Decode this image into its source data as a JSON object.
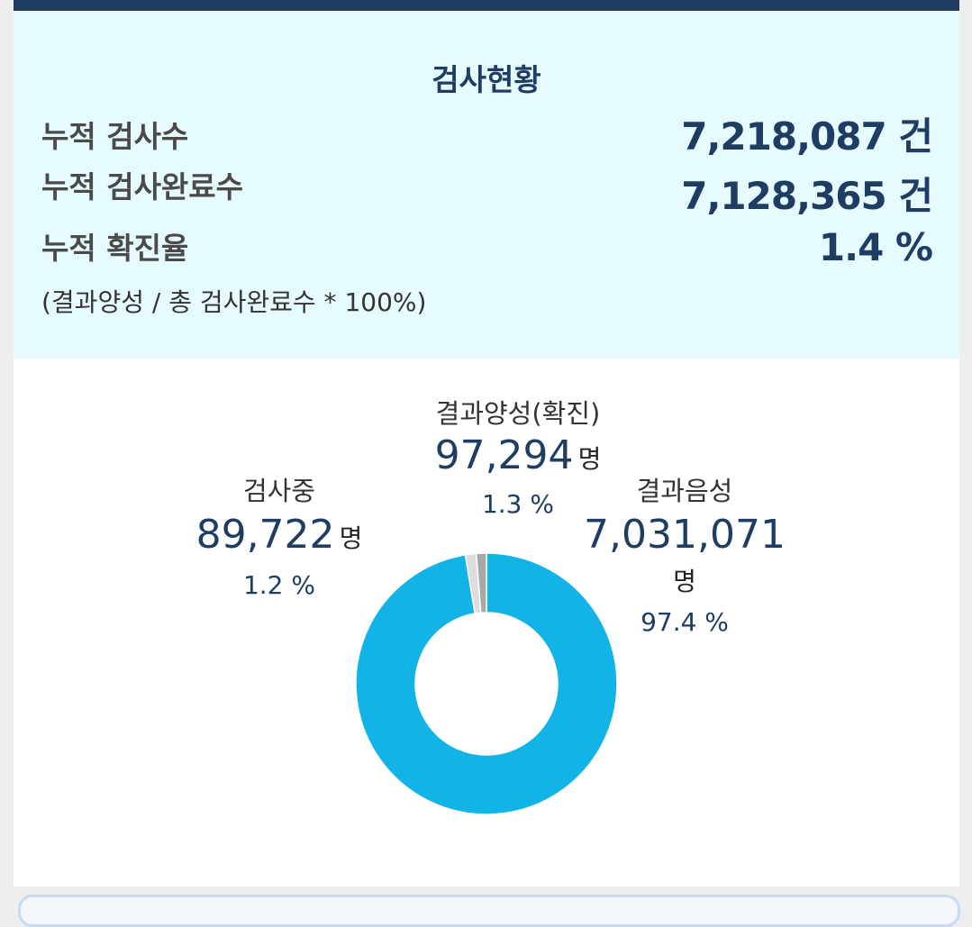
{
  "stats": {
    "title": "검사현황",
    "rows": [
      {
        "label": "누적 검사수",
        "value": "7,218,087 건"
      },
      {
        "label": "누적 검사완료수",
        "value": "7,128,365 건"
      },
      {
        "label": "누적 확진율",
        "value": "1.4 %"
      }
    ],
    "note": "(결과양성 / 총 검사완료수 * 100%)"
  },
  "chart_data": {
    "type": "pie",
    "style": "donut",
    "title": "",
    "categories": [
      "결과음성",
      "결과양성(확진)",
      "검사중"
    ],
    "values": [
      7031071,
      97294,
      89722
    ],
    "value_labels": [
      "7,031,071",
      "97,294",
      "89,722"
    ],
    "unit": "명",
    "percents": [
      "97.4 %",
      "1.3 %",
      "1.2 %"
    ],
    "colors": [
      "#12b3e6",
      "#dddddd",
      "#a7a7a7"
    ]
  }
}
